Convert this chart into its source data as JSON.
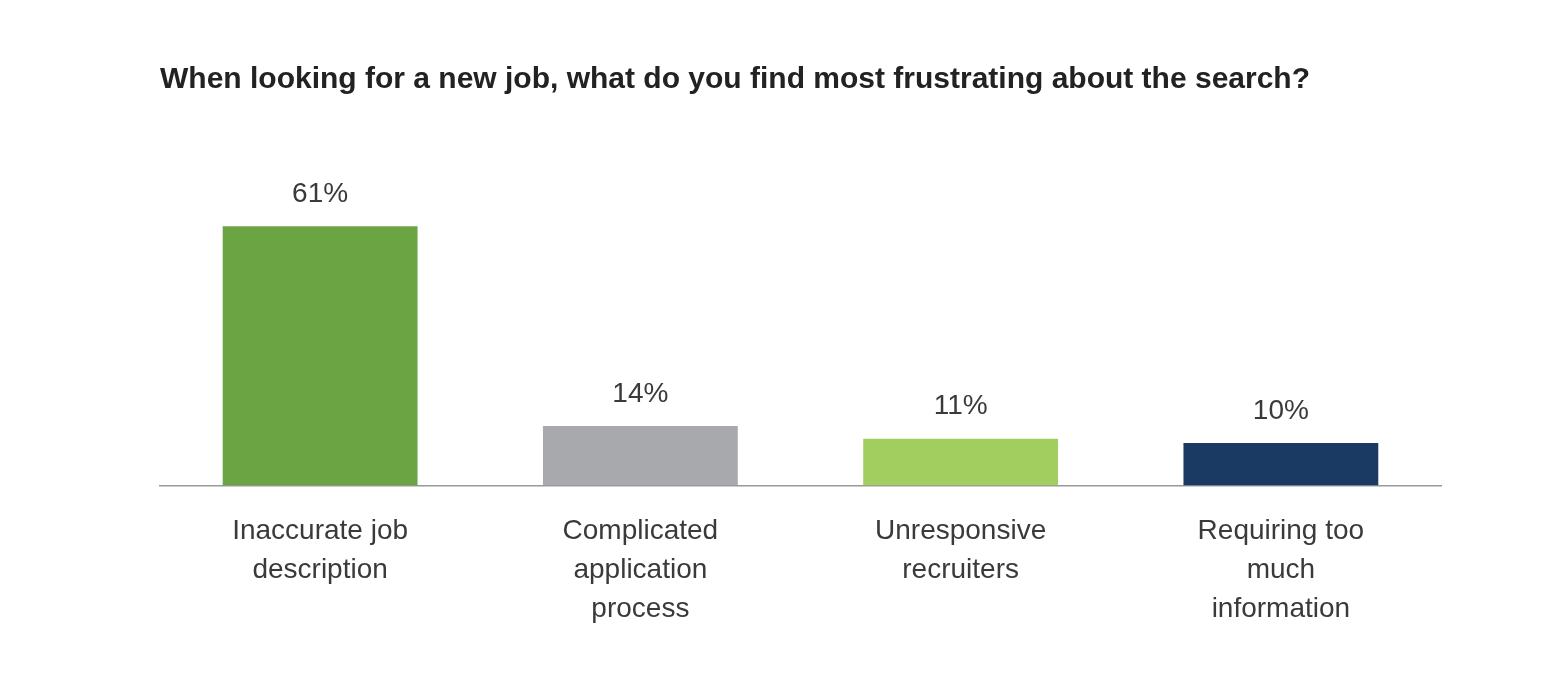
{
  "chart_data": {
    "type": "bar",
    "title": "When looking for a new job, what do you find most frustrating about the search?",
    "categories": [
      "Inaccurate job description",
      "Complicated application process",
      "Unresponsive recruiters",
      "Requiring too much information"
    ],
    "values": [
      61,
      14,
      11,
      10
    ],
    "colors": [
      "#6aa443",
      "#a7a9ac",
      "#a2cd5f",
      "#1b3a63"
    ],
    "value_labels": [
      "61%",
      "14%",
      "11%",
      "10%"
    ],
    "grid": false,
    "legend": false
  }
}
